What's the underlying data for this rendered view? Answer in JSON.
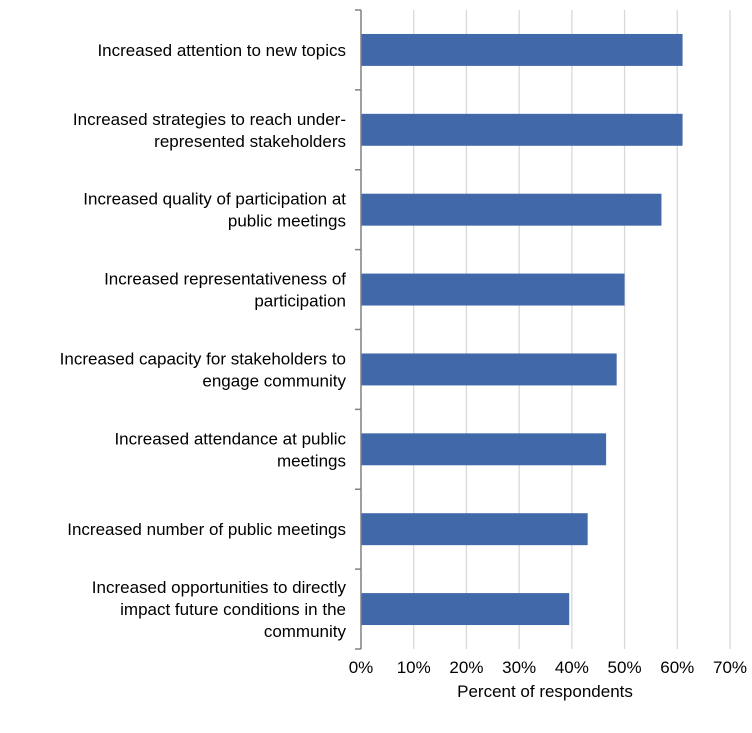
{
  "chart_data": {
    "type": "bar",
    "orientation": "horizontal",
    "categories": [
      [
        "Increased attention to new topics"
      ],
      [
        "Increased strategies to reach under-",
        "represented stakeholders"
      ],
      [
        "Increased quality of participation at",
        "public meetings"
      ],
      [
        "Increased representativeness of",
        "participation"
      ],
      [
        "Increased capacity for stakeholders to",
        "engage community"
      ],
      [
        "Increased attendance at public",
        "meetings"
      ],
      [
        "Increased number of public meetings"
      ],
      [
        "Increased opportunities to directly",
        "impact future conditions in the",
        "community"
      ]
    ],
    "values": [
      61,
      61,
      57,
      50,
      48.5,
      46.5,
      43,
      39.5
    ],
    "xlim": [
      0,
      70
    ],
    "xticks": [
      "0%",
      "10%",
      "20%",
      "30%",
      "40%",
      "50%",
      "60%",
      "70%"
    ],
    "xlabel": "Percent of respondents",
    "ylabel": "",
    "title": "",
    "grid": "vertical",
    "bar_color": "#4169a9",
    "grid_color": "#d9d9d9",
    "axis_color": "#808080"
  }
}
